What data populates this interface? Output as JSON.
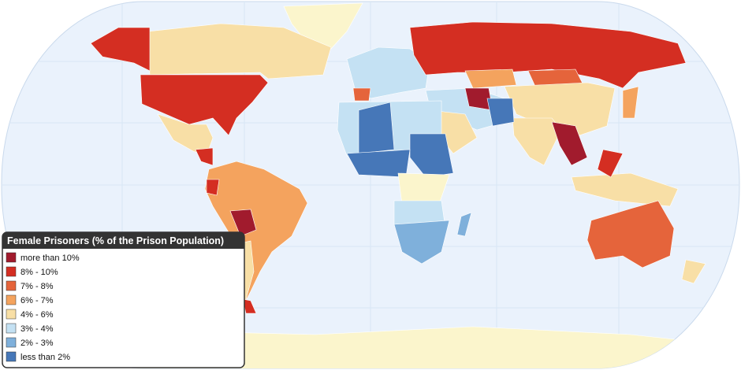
{
  "legend": {
    "title": "Female Prisoners (% of the Prison Population)",
    "items": [
      {
        "label": "more than 10%",
        "color": "#a11b2d"
      },
      {
        "label": "8% - 10%",
        "color": "#d42e22"
      },
      {
        "label": "7% - 8%",
        "color": "#e5643b"
      },
      {
        "label": "6% - 7%",
        "color": "#f4a35e"
      },
      {
        "label": "4% - 6%",
        "color": "#f8dfa6"
      },
      {
        "label": "3% - 4%",
        "color": "#c4e1f3"
      },
      {
        "label": "2% - 3%",
        "color": "#7fb0db"
      },
      {
        "label": "less than 2%",
        "color": "#4677b8"
      }
    ]
  }
}
